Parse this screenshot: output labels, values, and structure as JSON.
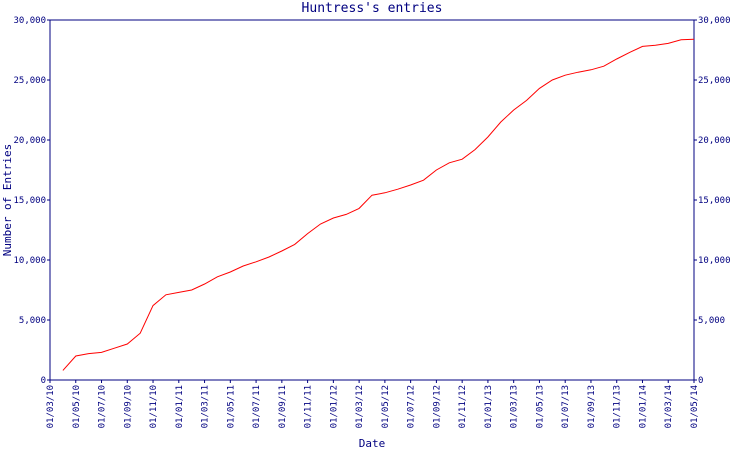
{
  "chart_data": {
    "type": "line",
    "title": "Huntress's entries",
    "xlabel": "Date",
    "ylabel": "Number of Entries",
    "x": [
      "01/04/10",
      "01/05/10",
      "01/06/10",
      "01/07/10",
      "01/08/10",
      "01/09/10",
      "01/10/10",
      "01/11/10",
      "01/12/10",
      "01/01/11",
      "01/02/11",
      "01/03/11",
      "01/04/11",
      "01/05/11",
      "01/06/11",
      "01/07/11",
      "01/08/11",
      "01/09/11",
      "01/10/11",
      "01/11/11",
      "01/12/11",
      "01/01/12",
      "01/02/12",
      "01/03/12",
      "01/04/12",
      "01/05/12",
      "01/06/12",
      "01/07/12",
      "01/08/12",
      "01/09/12",
      "01/10/12",
      "01/11/12",
      "01/12/12",
      "01/01/13",
      "01/02/13",
      "01/03/13",
      "01/04/13",
      "01/05/13",
      "01/06/13",
      "01/07/13",
      "01/08/13",
      "01/09/13",
      "01/10/13",
      "01/11/13",
      "01/12/13",
      "01/01/14",
      "01/02/14",
      "01/03/14",
      "01/04/14",
      "01/05/14"
    ],
    "series": [
      {
        "name": "Entries",
        "color": "#ff0000",
        "values": [
          800,
          2000,
          2200,
          2300,
          2650,
          3000,
          3900,
          6200,
          7100,
          7300,
          7500,
          8000,
          8600,
          9000,
          9500,
          9850,
          10250,
          10750,
          11300,
          12200,
          13000,
          13500,
          13800,
          14300,
          15400,
          15600,
          15900,
          16250,
          16650,
          17500,
          18100,
          18400,
          19200,
          20250,
          21500,
          22500,
          23300,
          24300,
          25000,
          25400,
          25650,
          25850,
          26150,
          26750,
          27300,
          27800,
          27900,
          28050,
          28350,
          28400
        ]
      }
    ],
    "xlim": [
      "01/03/10",
      "01/05/14"
    ],
    "xticks": [
      "01/03/10",
      "01/05/10",
      "01/07/10",
      "01/09/10",
      "01/11/10",
      "01/01/11",
      "01/03/11",
      "01/05/11",
      "01/07/11",
      "01/09/11",
      "01/11/11",
      "01/01/12",
      "01/03/12",
      "01/05/12",
      "01/07/12",
      "01/09/12",
      "01/11/12",
      "01/01/13",
      "01/03/13",
      "01/05/13",
      "01/07/13",
      "01/09/13",
      "01/11/13",
      "01/01/14",
      "01/03/14",
      "01/05/14"
    ],
    "ylim": [
      0,
      30000
    ],
    "yticks": [
      0,
      {
        "value": 5000,
        "label": "5,000"
      },
      {
        "value": 10000,
        "label": "10,000"
      },
      {
        "value": 15000,
        "label": "15,000"
      },
      {
        "value": 20000,
        "label": "20,000"
      },
      {
        "value": 25000,
        "label": "25,000"
      },
      {
        "value": 30000,
        "label": "30,000"
      }
    ]
  }
}
